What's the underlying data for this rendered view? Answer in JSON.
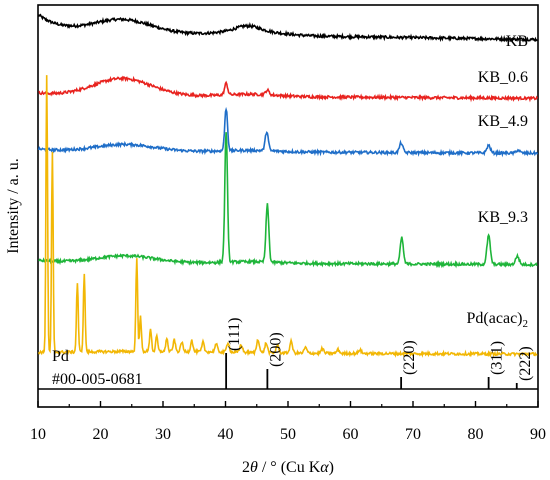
{
  "chart_data": {
    "type": "line",
    "title": "",
    "xlabel_prefix": "2",
    "xlabel_theta": "θ",
    "xlabel_rest": " / °  (Cu K",
    "xlabel_alpha": "α",
    "xlabel_close": ")",
    "ylabel": "Intensity / a. u.",
    "xlim": [
      10,
      90
    ],
    "xticks": [
      10,
      20,
      30,
      40,
      50,
      60,
      70,
      80,
      90
    ],
    "grid": false,
    "series": [
      {
        "name": "KB",
        "color": "#000000",
        "offset": 0.93,
        "profile": "amorphous_strong",
        "peaks": [
          [
            43.5,
            0.012,
            2.5
          ]
        ]
      },
      {
        "name": "KB_0.6",
        "color": "#e8231f",
        "offset": 0.765,
        "profile": "amorphous_medium",
        "peaks": [
          [
            40.1,
            0.03,
            0.35
          ],
          [
            46.7,
            0.012,
            0.4
          ]
        ]
      },
      {
        "name": "KB_4.9",
        "color": "#1f6ec8",
        "offset": 0.62,
        "profile": "amorphous_weak",
        "peaks": [
          [
            40.1,
            0.11,
            0.32
          ],
          [
            46.6,
            0.05,
            0.35
          ],
          [
            68.1,
            0.025,
            0.38
          ],
          [
            82.1,
            0.02,
            0.4
          ],
          [
            86.8,
            0.008,
            0.4
          ]
        ]
      },
      {
        "name": "KB_9.3",
        "color": "#1fb53a",
        "offset": 0.33,
        "profile": "amorphous_weak",
        "peaks": [
          [
            40.1,
            0.34,
            0.3
          ],
          [
            46.7,
            0.15,
            0.32
          ],
          [
            68.2,
            0.068,
            0.35
          ],
          [
            82.1,
            0.075,
            0.38
          ],
          [
            86.7,
            0.022,
            0.4
          ]
        ]
      },
      {
        "name": "Pd(acac)",
        "name_sub": "2",
        "color": "#f2b705",
        "offset": 0.095,
        "profile": "flat",
        "peaks": [
          [
            11.4,
            0.72,
            0.18
          ],
          [
            12.3,
            0.52,
            0.18
          ],
          [
            16.3,
            0.18,
            0.2
          ],
          [
            17.4,
            0.2,
            0.2
          ],
          [
            25.8,
            0.24,
            0.2
          ],
          [
            26.4,
            0.09,
            0.2
          ],
          [
            28.0,
            0.06,
            0.22
          ],
          [
            29.0,
            0.04,
            0.22
          ],
          [
            30.6,
            0.035,
            0.22
          ],
          [
            31.8,
            0.03,
            0.25
          ],
          [
            33.0,
            0.025,
            0.25
          ],
          [
            34.6,
            0.03,
            0.25
          ],
          [
            36.4,
            0.025,
            0.25
          ],
          [
            38.5,
            0.02,
            0.3
          ],
          [
            40.4,
            0.025,
            0.3
          ],
          [
            42.5,
            0.02,
            0.3
          ],
          [
            45.2,
            0.035,
            0.3
          ],
          [
            46.5,
            0.025,
            0.3
          ],
          [
            48.3,
            0.02,
            0.3
          ],
          [
            50.5,
            0.03,
            0.3
          ],
          [
            52.8,
            0.015,
            0.3
          ],
          [
            55.5,
            0.012,
            0.3
          ],
          [
            58.0,
            0.01,
            0.3
          ],
          [
            61.5,
            0.01,
            0.3
          ]
        ]
      }
    ],
    "reference": {
      "name": "Pd",
      "card": "#00-005-0681",
      "lines": [
        {
          "x": 40.1,
          "label": "(111)",
          "height": 0.09
        },
        {
          "x": 46.7,
          "label": "(200)",
          "height": 0.05
        },
        {
          "x": 68.1,
          "label": "(220)",
          "height": 0.03
        },
        {
          "x": 82.1,
          "label": "(311)",
          "height": 0.03
        },
        {
          "x": 86.6,
          "label": "(222)",
          "height": 0.015
        }
      ]
    }
  }
}
